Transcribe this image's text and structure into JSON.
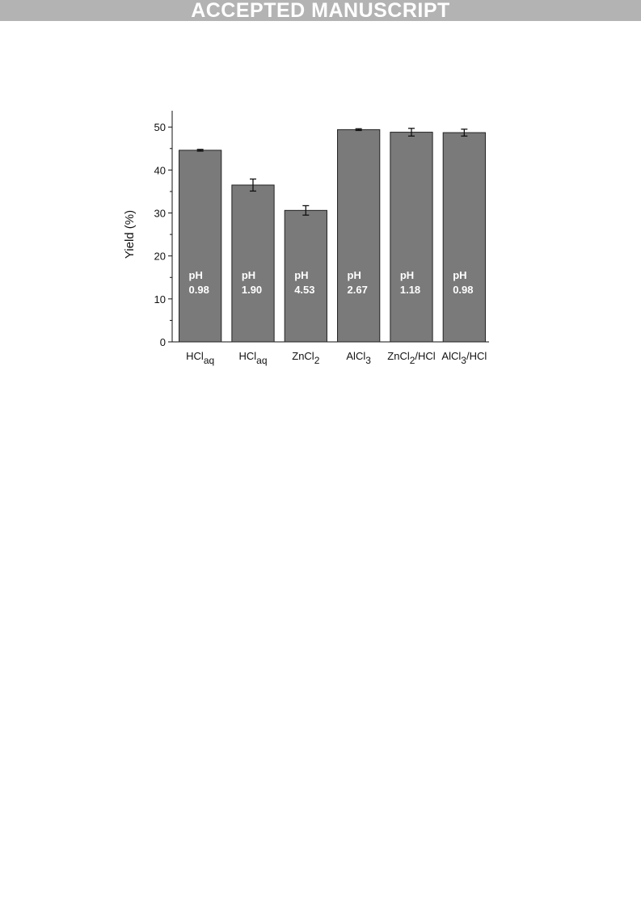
{
  "header": {
    "banner": "ACCEPTED MANUSCRIPT"
  },
  "chart_data": {
    "type": "bar",
    "ylabel": "Yield (%)",
    "categories": [
      [
        "HCl",
        "aq"
      ],
      [
        "HCl",
        "aq"
      ],
      [
        "ZnCl",
        "2"
      ],
      [
        "AlCl",
        "3"
      ],
      [
        "ZnCl",
        "2",
        "/HCl"
      ],
      [
        "AlCl",
        "3",
        "/HCl"
      ]
    ],
    "values": [
      44.6,
      36.5,
      30.6,
      49.4,
      48.8,
      48.7
    ],
    "errors": [
      0.2,
      1.4,
      1.1,
      0.2,
      0.9,
      0.8
    ],
    "ph_labels": [
      [
        "pH",
        "0.98"
      ],
      [
        "pH",
        "1.90"
      ],
      [
        "pH",
        "4.53"
      ],
      [
        "pH",
        "2.67"
      ],
      [
        "pH",
        "1.18"
      ],
      [
        "pH",
        "0.98"
      ]
    ],
    "color": "#7a7a7a",
    "ylim": [
      0,
      53.8
    ],
    "yticks": [
      0,
      10,
      20,
      30,
      40,
      50
    ],
    "yminor_ticks": [
      5,
      15,
      25,
      35,
      45
    ],
    "grid": false
  }
}
